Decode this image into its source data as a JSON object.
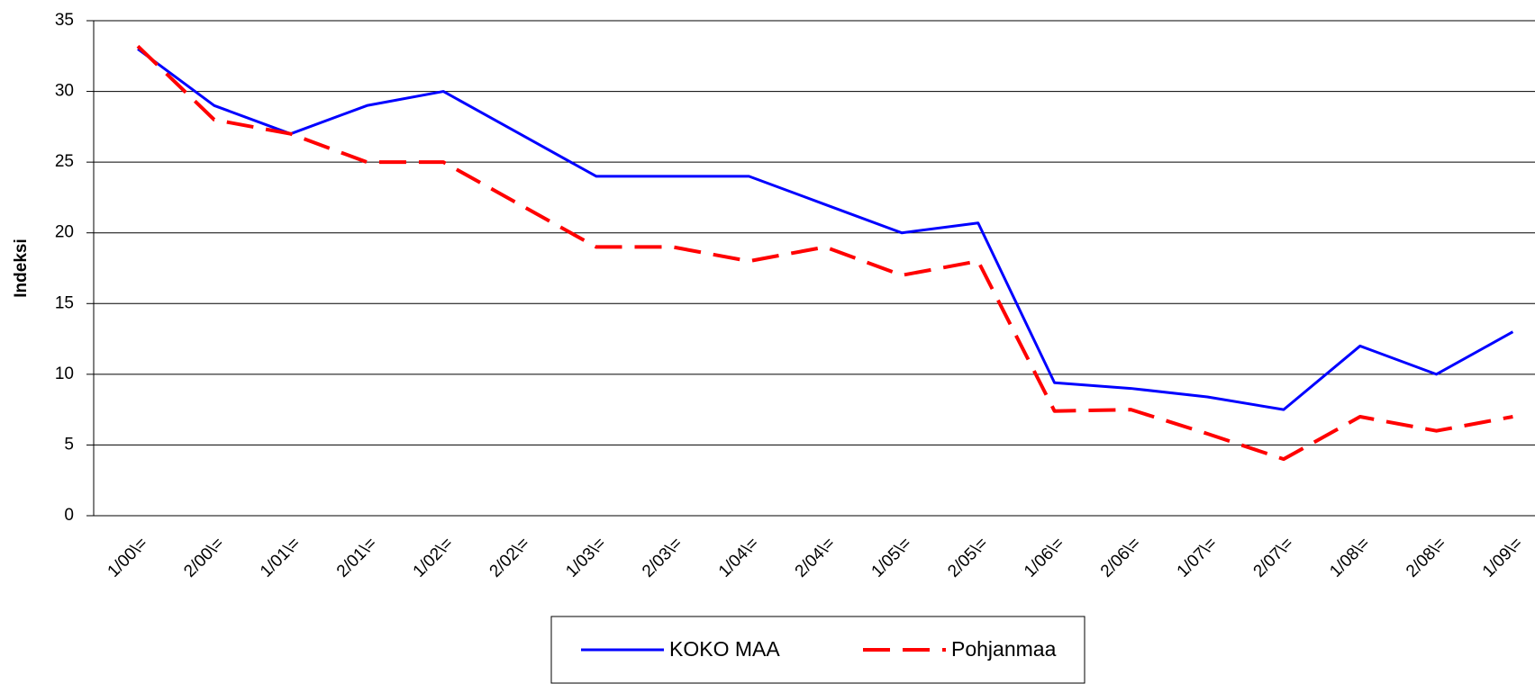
{
  "chart_data": {
    "type": "line",
    "y_label": "Indeksi",
    "categories": [
      "1/00\\=",
      "2/00\\=",
      "1/01\\=",
      "2/01\\=",
      "1/02\\=",
      "2/02\\=",
      "1/03\\=",
      "2/03\\=",
      "1/04\\=",
      "2/04\\=",
      "1/05\\=",
      "2/05\\=",
      "1/06\\=",
      "2/06\\=",
      "1/07\\=",
      "2/07\\=",
      "1/08\\=",
      "2/08\\=",
      "1/09\\="
    ],
    "series": [
      {
        "name": "KOKO MAA",
        "color": "#0000ff",
        "dash": false,
        "values": [
          33,
          29,
          27,
          29,
          30,
          27,
          24,
          24,
          24,
          22,
          20,
          20.7,
          9.4,
          9,
          8.4,
          7.5,
          12,
          10,
          13
        ]
      },
      {
        "name": "Pohjanmaa",
        "color": "#ff0000",
        "dash": true,
        "values": [
          33.2,
          28,
          27,
          25,
          25,
          22,
          19,
          19,
          18,
          19,
          17,
          18,
          7.4,
          7.5,
          5.8,
          4,
          7,
          6,
          7
        ]
      }
    ],
    "ylim": [
      0,
      35
    ],
    "yticks": [
      0,
      5,
      10,
      15,
      20,
      25,
      30,
      35
    ],
    "grid": true,
    "legend": "bottom"
  }
}
